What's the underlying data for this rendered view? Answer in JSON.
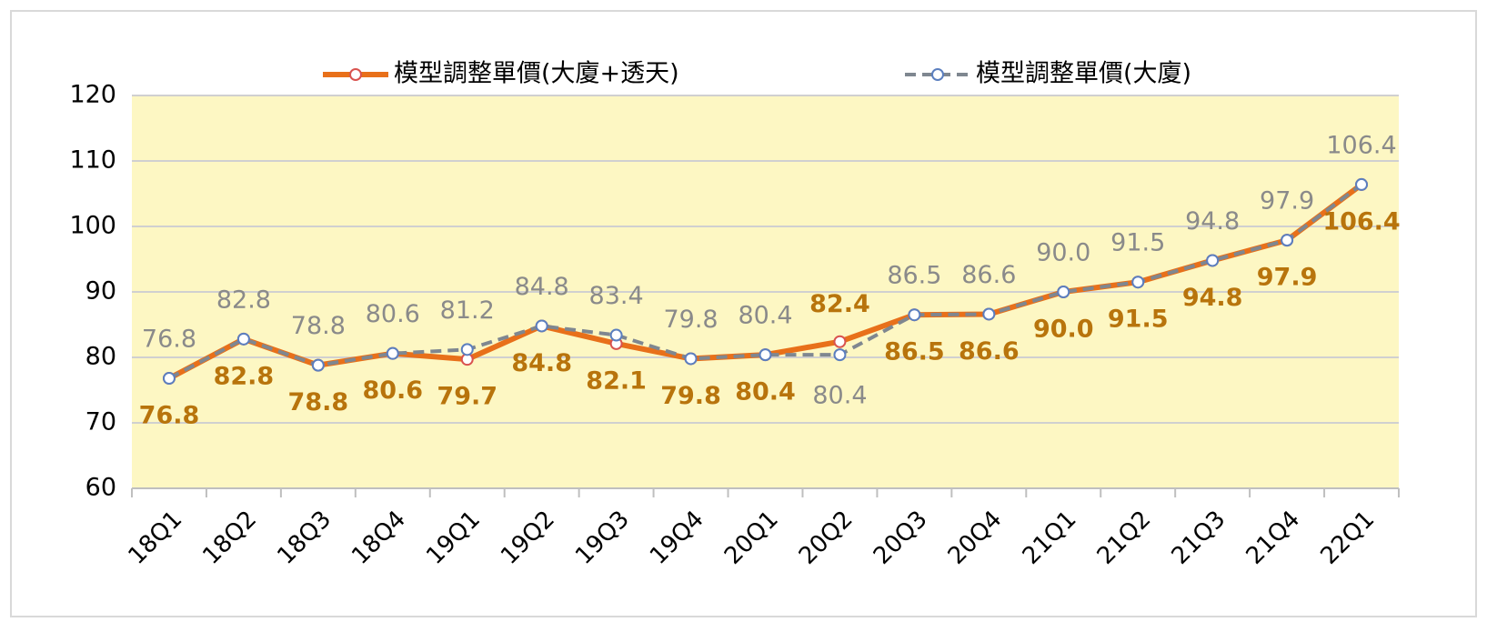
{
  "chart_data": {
    "type": "line",
    "categories": [
      "18Q1",
      "18Q2",
      "18Q3",
      "18Q4",
      "19Q1",
      "19Q2",
      "19Q3",
      "19Q4",
      "20Q1",
      "20Q2",
      "20Q3",
      "20Q4",
      "21Q1",
      "21Q2",
      "21Q3",
      "21Q4",
      "22Q1"
    ],
    "series": [
      {
        "name": "模型調整單價(大廈+透天)",
        "color": "#e8701a",
        "marker_color": "#d9534f",
        "label_color": "#b8740c",
        "dash": false,
        "values": [
          76.8,
          82.8,
          78.8,
          80.6,
          79.7,
          84.8,
          82.1,
          79.8,
          80.4,
          82.4,
          86.5,
          86.6,
          90.0,
          91.5,
          94.8,
          97.9,
          106.4
        ],
        "value_labels": [
          "76.8",
          "82.8",
          "78.8",
          "80.6",
          "79.7",
          "84.8",
          "82.1",
          "79.8",
          "80.4",
          "82.4",
          "86.5",
          "86.6",
          "90.0",
          "91.5",
          "94.8",
          "97.9",
          "106.4"
        ]
      },
      {
        "name": "模型調整單價(大廈)",
        "color": "#7f8790",
        "marker_color": "#5b7fbf",
        "label_color": "#8a8a8a",
        "dash": true,
        "values": [
          76.8,
          82.8,
          78.8,
          80.6,
          81.2,
          84.8,
          83.4,
          79.8,
          80.4,
          80.4,
          86.5,
          86.6,
          90.0,
          91.5,
          94.8,
          97.9,
          106.4
        ],
        "value_labels": [
          "76.8",
          "82.8",
          "78.8",
          "80.6",
          "81.2",
          "84.8",
          "83.4",
          "79.8",
          "80.4",
          "80.4",
          "86.5",
          "86.6",
          "90.0",
          "91.5",
          "94.8",
          "97.9",
          "106.4"
        ]
      }
    ],
    "ylim": [
      60,
      120
    ],
    "yticks": [
      60,
      70,
      80,
      90,
      100,
      110,
      120
    ],
    "grid": true,
    "legend": "top"
  }
}
